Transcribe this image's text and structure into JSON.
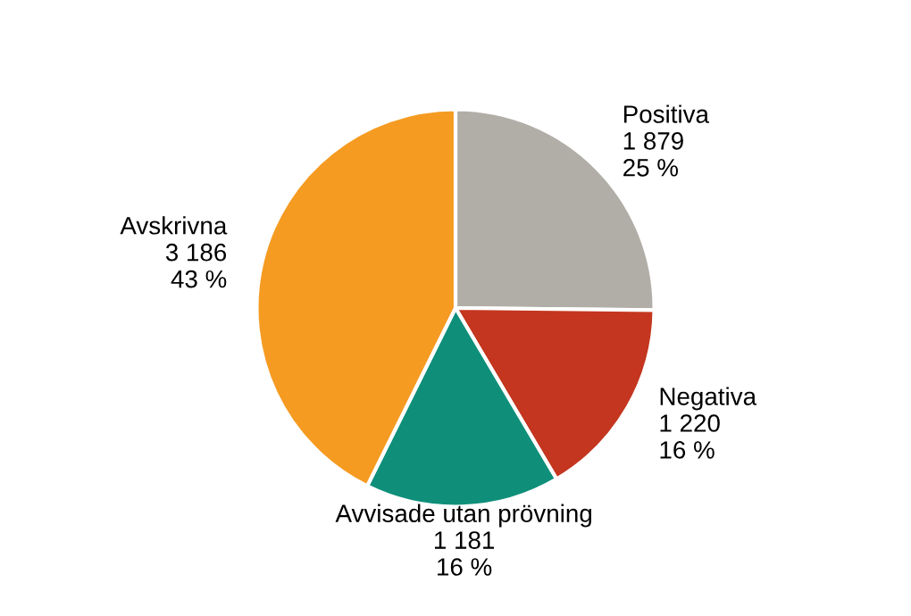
{
  "chart_data": {
    "type": "pie",
    "categories": [
      "Positiva",
      "Negativa",
      "Avvisade utan prövning",
      "Avskrivna"
    ],
    "values": [
      1879,
      1220,
      1181,
      3186
    ],
    "colors": [
      "#b1aea7",
      "#c4361f",
      "#0f8f7a",
      "#f59b22"
    ],
    "value_labels": [
      "1 879\n25 %",
      "1 220\n16 %",
      "1 181\n16 %",
      "3 186\n43 %"
    ]
  }
}
